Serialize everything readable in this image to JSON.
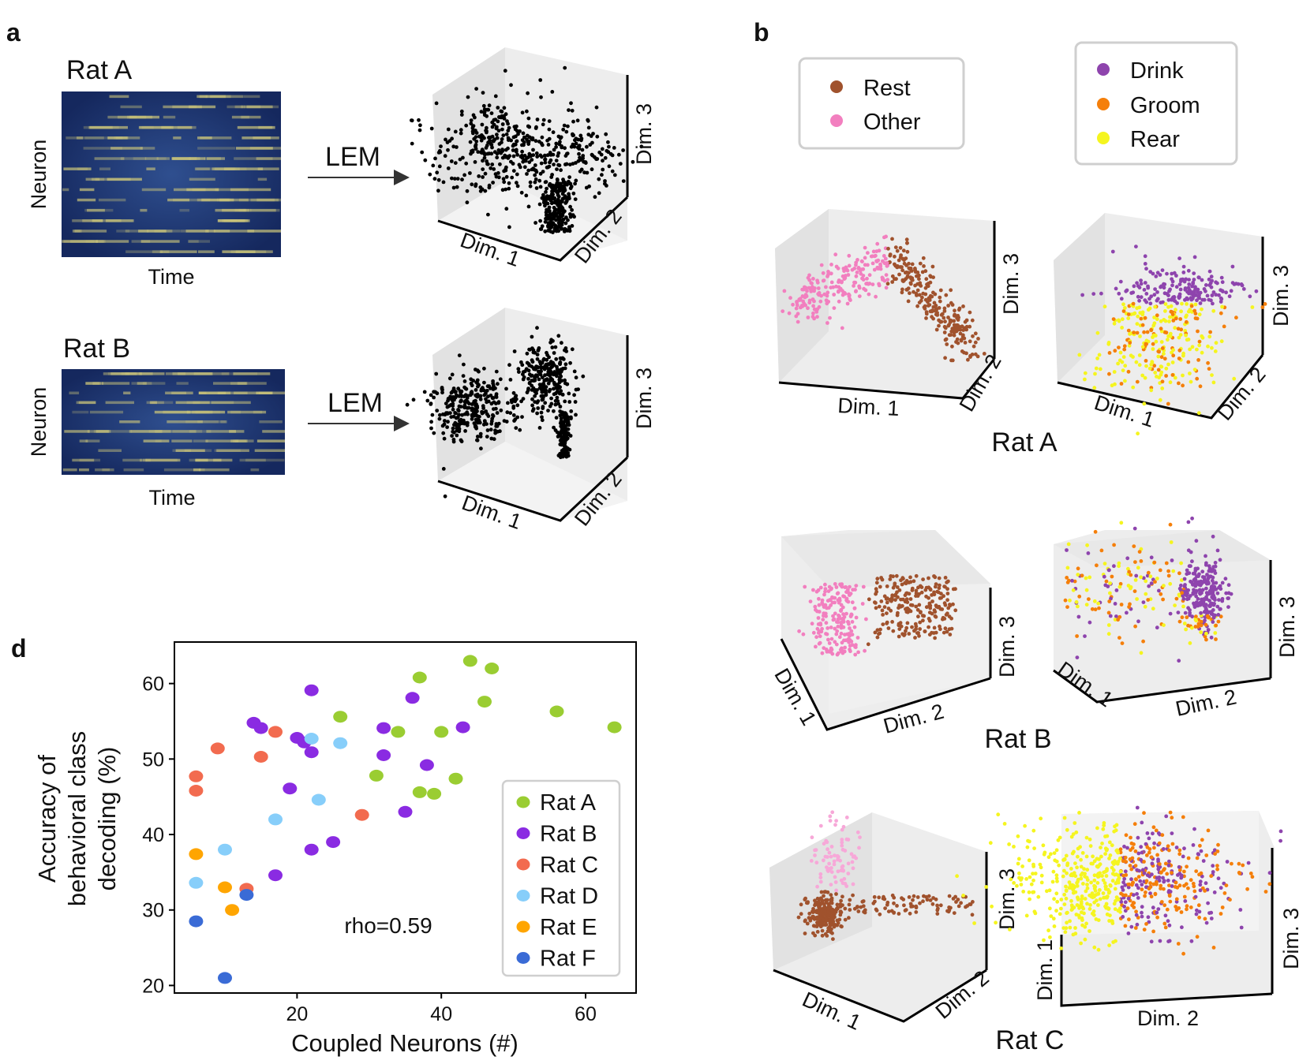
{
  "panels": {
    "a": "a",
    "b": "b",
    "d": "d"
  },
  "panel_a": {
    "rows": [
      {
        "title": "Rat A",
        "ylabel": "Neuron",
        "xlabel": "Time",
        "arrow_label": "LEM"
      },
      {
        "title": "Rat B",
        "ylabel": "Neuron",
        "xlabel": "Time",
        "arrow_label": "LEM"
      }
    ],
    "axis_labels": {
      "dim1": "Dim. 1",
      "dim2": "Dim. 2",
      "dim3": "Dim. 3"
    }
  },
  "panel_b": {
    "legend_left": [
      {
        "label": "Rest",
        "color": "#a0522d"
      },
      {
        "label": "Other",
        "color": "#f27fbf"
      }
    ],
    "legend_right": [
      {
        "label": "Drink",
        "color": "#8e44ad"
      },
      {
        "label": "Groom",
        "color": "#f57f0a"
      },
      {
        "label": "Rear",
        "color": "#f5f51f"
      }
    ],
    "rats": [
      "Rat A",
      "Rat B",
      "Rat C"
    ],
    "axis_labels": {
      "dim1": "Dim. 1",
      "dim2": "Dim. 2",
      "dim3": "Dim. 3"
    }
  },
  "chart_data": {
    "type": "scatter",
    "xlabel": "Coupled Neurons (#)",
    "ylabel": "Accuracy of behavioral class decoding (%)",
    "ylabel_lines": [
      "Accuracy of",
      "behavioral class",
      "decoding (%)"
    ],
    "xlim": [
      3,
      67
    ],
    "ylim": [
      19,
      65.5
    ],
    "xticks": [
      20,
      40,
      60
    ],
    "yticks": [
      20,
      30,
      40,
      50,
      60
    ],
    "annotation": "rho=0.59",
    "series": [
      {
        "name": "Rat A",
        "color": "#9acd32",
        "points": [
          [
            44,
            63
          ],
          [
            47,
            62
          ],
          [
            37,
            60.8
          ],
          [
            46,
            57.6
          ],
          [
            26,
            55.6
          ],
          [
            56,
            56.3
          ],
          [
            64,
            54.2
          ],
          [
            34,
            53.6
          ],
          [
            40,
            53.6
          ],
          [
            31,
            47.8
          ],
          [
            42,
            47.4
          ],
          [
            37,
            45.6
          ],
          [
            39,
            45.4
          ]
        ]
      },
      {
        "name": "Rat B",
        "color": "#8a2be2",
        "points": [
          [
            22,
            59.1
          ],
          [
            36,
            58.1
          ],
          [
            14,
            54.8
          ],
          [
            15,
            54.1
          ],
          [
            32,
            54.1
          ],
          [
            43,
            54.2
          ],
          [
            20,
            52.8
          ],
          [
            21,
            52.2
          ],
          [
            22,
            50.9
          ],
          [
            32,
            50.5
          ],
          [
            38,
            49.2
          ],
          [
            19,
            46.1
          ],
          [
            35,
            43
          ],
          [
            25,
            39
          ],
          [
            22,
            38
          ],
          [
            17,
            34.6
          ]
        ]
      },
      {
        "name": "Rat C",
        "color": "#f26b4f",
        "points": [
          [
            9,
            51.4
          ],
          [
            17,
            53.6
          ],
          [
            15,
            50.3
          ],
          [
            6,
            47.7
          ],
          [
            6,
            45.8
          ],
          [
            29,
            42.6
          ],
          [
            13,
            32.8
          ]
        ]
      },
      {
        "name": "Rat D",
        "color": "#87cefa",
        "points": [
          [
            22,
            52.7
          ],
          [
            26,
            52.1
          ],
          [
            23,
            44.6
          ],
          [
            17,
            42
          ],
          [
            10,
            38
          ],
          [
            6,
            33.6
          ]
        ]
      },
      {
        "name": "Rat E",
        "color": "#ffa500",
        "points": [
          [
            6,
            37.4
          ],
          [
            10,
            33
          ],
          [
            11,
            30
          ]
        ]
      },
      {
        "name": "Rat F",
        "color": "#3a6bd6",
        "points": [
          [
            6,
            28.5
          ],
          [
            13,
            32
          ],
          [
            10,
            21
          ]
        ]
      }
    ]
  }
}
